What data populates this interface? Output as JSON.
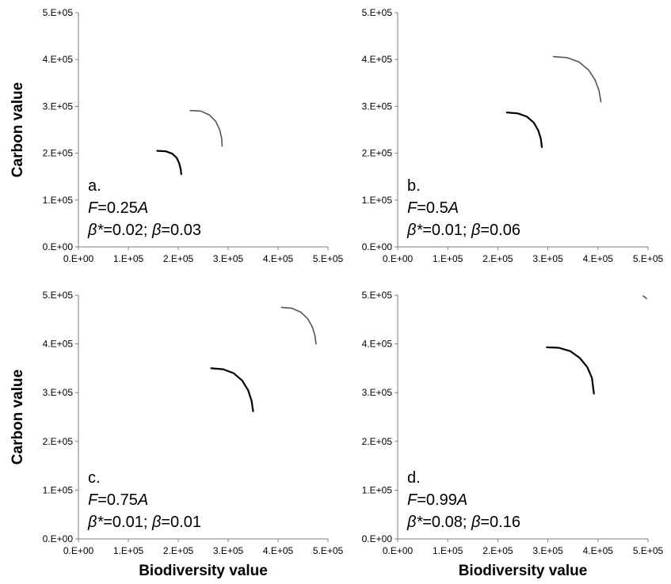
{
  "chart_data": [
    {
      "type": "line",
      "panel_label": "a.",
      "annotation": {
        "f_var": "F",
        "f_eq": "=0.25",
        "f_unit": "A",
        "b_star": "β*",
        "b_star_eq": "=0.02; ",
        "b": "β",
        "b_eq": "=0.03"
      },
      "xlabel": "",
      "ylabel": "Carbon value",
      "xlim": [
        0,
        500000
      ],
      "ylim": [
        0,
        500000
      ],
      "x_ticks": [
        "0.E+00",
        "1.E+05",
        "2.E+05",
        "3.E+05",
        "4.E+05",
        "5.E+05"
      ],
      "y_ticks": [
        "0.E+00",
        "1.E+05",
        "2.E+05",
        "3.E+05",
        "4.E+05",
        "5.E+05"
      ],
      "grid": false,
      "series": [
        {
          "color": "#000000",
          "width": 2.2,
          "points": [
            [
              158000,
              205000
            ],
            [
              175000,
              204000
            ],
            [
              188000,
              199000
            ],
            [
              197000,
              190000
            ],
            [
              202000,
              178000
            ],
            [
              205000,
              165000
            ],
            [
              206000,
              155000
            ]
          ]
        },
        {
          "color": "#555555",
          "width": 1.6,
          "points": [
            [
              224000,
              291000
            ],
            [
              245000,
              290000
            ],
            [
              262000,
              282000
            ],
            [
              275000,
              268000
            ],
            [
              283000,
              250000
            ],
            [
              287000,
              232000
            ],
            [
              288000,
              215000
            ]
          ]
        }
      ]
    },
    {
      "type": "line",
      "panel_label": "b.",
      "annotation": {
        "f_var": "F",
        "f_eq": "=0.5",
        "f_unit": "A",
        "b_star": "β*",
        "b_star_eq": "=0.01; ",
        "b": "β",
        "b_eq": "=0.06"
      },
      "xlabel": "",
      "ylabel": "",
      "xlim": [
        0,
        500000
      ],
      "ylim": [
        0,
        500000
      ],
      "x_ticks": [
        "0.E+00",
        "1.E+05",
        "2.E+05",
        "3.E+05",
        "4.E+05",
        "5.E+05"
      ],
      "y_ticks": [
        "0.E+00",
        "1.E+05",
        "2.E+05",
        "3.E+05",
        "4.E+05",
        "5.E+05"
      ],
      "grid": false,
      "series": [
        {
          "color": "#000000",
          "width": 2.2,
          "points": [
            [
              218000,
              287000
            ],
            [
              240000,
              285000
            ],
            [
              258000,
              278000
            ],
            [
              272000,
              265000
            ],
            [
              281000,
              248000
            ],
            [
              286000,
              230000
            ],
            [
              288000,
              213000
            ]
          ]
        },
        {
          "color": "#555555",
          "width": 1.6,
          "points": [
            [
              311000,
              406000
            ],
            [
              338000,
              404000
            ],
            [
              362000,
              395000
            ],
            [
              381000,
              378000
            ],
            [
              394000,
              357000
            ],
            [
              402000,
              334000
            ],
            [
              406000,
              310000
            ]
          ]
        }
      ]
    },
    {
      "type": "line",
      "panel_label": "c.",
      "annotation": {
        "f_var": "F",
        "f_eq": "=0.75",
        "f_unit": "A",
        "b_star": "β*",
        "b_star_eq": "=0.01; ",
        "b": "β",
        "b_eq": "=0.01"
      },
      "xlabel": "Biodiversity value",
      "ylabel": "Carbon value",
      "xlim": [
        0,
        500000
      ],
      "ylim": [
        0,
        500000
      ],
      "x_ticks": [
        "0.E+00",
        "1.E+05",
        "2.E+05",
        "3.E+05",
        "4.E+05",
        "5.E+05"
      ],
      "y_ticks": [
        "0.E+00",
        "1.E+05",
        "2.E+05",
        "3.E+05",
        "4.E+05",
        "5.E+05"
      ],
      "grid": false,
      "series": [
        {
          "color": "#000000",
          "width": 2.2,
          "points": [
            [
              266000,
              350000
            ],
            [
              290000,
              348000
            ],
            [
              311000,
              340000
            ],
            [
              328000,
              325000
            ],
            [
              340000,
              305000
            ],
            [
              347000,
              283000
            ],
            [
              350000,
              262000
            ]
          ]
        },
        {
          "color": "#555555",
          "width": 1.6,
          "points": [
            [
              407000,
              475000
            ],
            [
              428000,
              473000
            ],
            [
              446000,
              465000
            ],
            [
              460000,
              451000
            ],
            [
              469000,
              434000
            ],
            [
              474000,
              417000
            ],
            [
              476000,
              400000
            ]
          ]
        }
      ]
    },
    {
      "type": "line",
      "panel_label": "d.",
      "annotation": {
        "f_var": "F",
        "f_eq": "=0.99",
        "f_unit": "A",
        "b_star": "β*",
        "b_star_eq": "=0.08; ",
        "b": "β",
        "b_eq": "=0.16"
      },
      "xlabel": "Biodiversity value",
      "ylabel": "",
      "xlim": [
        0,
        500000
      ],
      "ylim": [
        0,
        500000
      ],
      "x_ticks": [
        "0.E+00",
        "1.E+05",
        "2.E+05",
        "3.E+05",
        "4.E+05",
        "5.E+05"
      ],
      "y_ticks": [
        "0.E+00",
        "1.E+05",
        "2.E+05",
        "3.E+05",
        "4.E+05",
        "5.E+05"
      ],
      "grid": false,
      "series": [
        {
          "color": "#000000",
          "width": 2.2,
          "points": [
            [
              298000,
              393000
            ],
            [
              322000,
              392000
            ],
            [
              345000,
              385000
            ],
            [
              364000,
              371000
            ],
            [
              379000,
              352000
            ],
            [
              388000,
              330000
            ],
            [
              392000,
              298000
            ]
          ]
        },
        {
          "color": "#555555",
          "width": 1.6,
          "points": [
            [
              490000,
              498000
            ],
            [
              494000,
              496000
            ],
            [
              497000,
              493000
            ]
          ]
        }
      ]
    }
  ]
}
